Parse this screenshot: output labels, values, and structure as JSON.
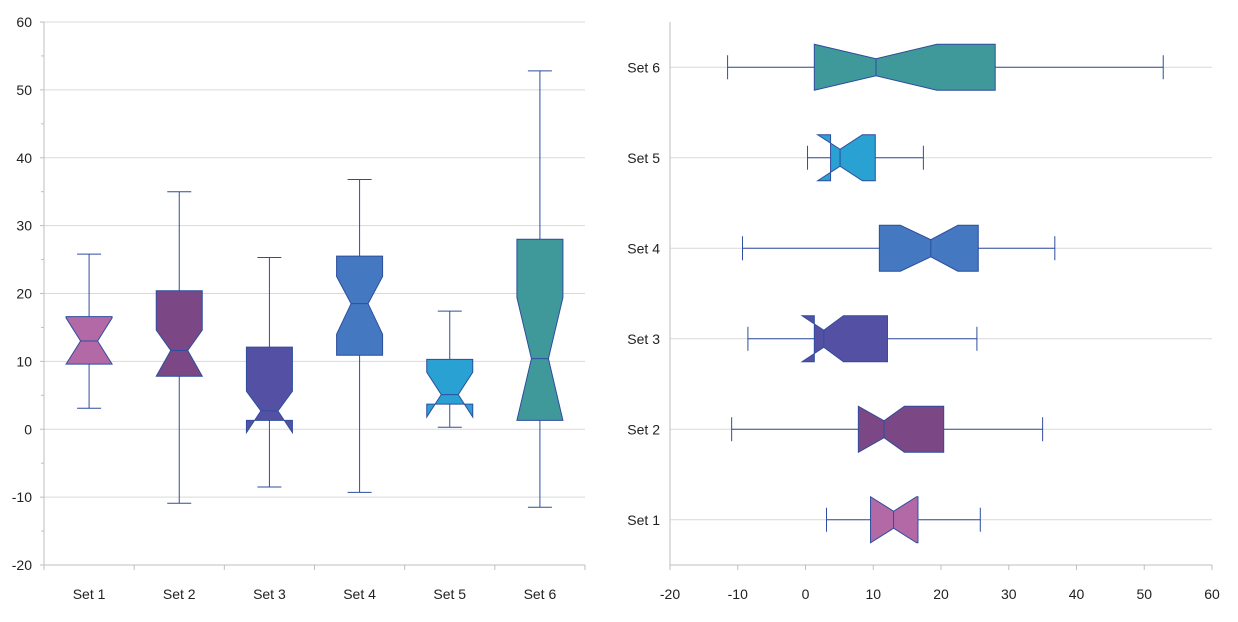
{
  "chart_data": [
    {
      "type": "box",
      "orientation": "vertical",
      "notched": true,
      "ylim": [
        -20,
        60
      ],
      "yticks": [
        "-20",
        "-10",
        "0",
        "10",
        "20",
        "30",
        "40",
        "50",
        "60"
      ],
      "grid": true,
      "categories": [
        "Set 1",
        "Set 2",
        "Set 3",
        "Set 4",
        "Set 5",
        "Set 6"
      ],
      "boxes": [
        {
          "min": 3.1,
          "q1": 9.6,
          "median": 13.0,
          "q3": 16.6,
          "max": 25.8,
          "notch_low": 9.6,
          "notch_high": 16.4,
          "color": "#B469A7"
        },
        {
          "min": -10.9,
          "q1": 7.8,
          "median": 11.6,
          "q3": 20.4,
          "max": 35.0,
          "notch_low": 7.8,
          "notch_high": 14.6,
          "color": "#7B4784"
        },
        {
          "min": -8.5,
          "q1": 1.3,
          "median": 2.7,
          "q3": 12.1,
          "max": 25.3,
          "notch_low": -0.5,
          "notch_high": 5.6,
          "color": "#5451A5"
        },
        {
          "min": -9.3,
          "q1": 10.9,
          "median": 18.5,
          "q3": 25.5,
          "max": 36.8,
          "notch_low": 14.0,
          "notch_high": 22.5,
          "color": "#4478C0"
        },
        {
          "min": 0.3,
          "q1": 3.7,
          "median": 5.1,
          "q3": 10.3,
          "max": 17.4,
          "notch_low": 1.8,
          "notch_high": 8.4,
          "color": "#29A1D2"
        },
        {
          "min": -11.5,
          "q1": 1.3,
          "median": 10.4,
          "q3": 28.0,
          "max": 52.8,
          "notch_low": 1.3,
          "notch_high": 19.4,
          "color": "#3F9899"
        }
      ]
    },
    {
      "type": "box",
      "orientation": "horizontal",
      "notched": true,
      "xlim": [
        -20,
        60
      ],
      "xticks": [
        "-20",
        "-10",
        "0",
        "10",
        "20",
        "30",
        "40",
        "50",
        "60"
      ],
      "grid": true,
      "categories": [
        "Set 1",
        "Set 2",
        "Set 3",
        "Set 4",
        "Set 5",
        "Set 6"
      ],
      "boxes": [
        {
          "min": 3.1,
          "q1": 9.6,
          "median": 13.0,
          "q3": 16.6,
          "max": 25.8,
          "notch_low": 9.6,
          "notch_high": 16.4,
          "color": "#B469A7"
        },
        {
          "min": -10.9,
          "q1": 7.8,
          "median": 11.6,
          "q3": 20.4,
          "max": 35.0,
          "notch_low": 7.8,
          "notch_high": 14.6,
          "color": "#7B4784"
        },
        {
          "min": -8.5,
          "q1": 1.3,
          "median": 2.7,
          "q3": 12.1,
          "max": 25.3,
          "notch_low": -0.5,
          "notch_high": 5.6,
          "color": "#5451A5"
        },
        {
          "min": -9.3,
          "q1": 10.9,
          "median": 18.5,
          "q3": 25.5,
          "max": 36.8,
          "notch_low": 14.0,
          "notch_high": 22.5,
          "color": "#4478C0"
        },
        {
          "min": 0.3,
          "q1": 3.7,
          "median": 5.1,
          "q3": 10.3,
          "max": 17.4,
          "notch_low": 1.8,
          "notch_high": 8.4,
          "color": "#29A1D2"
        },
        {
          "min": -11.5,
          "q1": 1.3,
          "median": 10.4,
          "q3": 28.0,
          "max": 52.8,
          "notch_low": 1.3,
          "notch_high": 19.4,
          "color": "#3F9899"
        }
      ]
    }
  ],
  "style": {
    "line_color": "#2E4D9E",
    "grid_color": "#D9D9D9",
    "axis_color": "#BFBFBF"
  }
}
